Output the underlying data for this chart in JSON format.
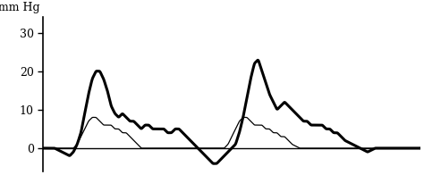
{
  "ylabel": "mm Hg",
  "yticks": [
    0,
    10,
    20,
    30
  ],
  "ylim": [
    -6,
    34
  ],
  "xlim": [
    0,
    100
  ],
  "bg_color": "#ffffff",
  "line_color": "#000000",
  "figsize": [
    4.74,
    1.96
  ],
  "dpi": 100,
  "thick_x": [
    0,
    3,
    5,
    7,
    8,
    9,
    10,
    11,
    12,
    13,
    14,
    15,
    16,
    17,
    18,
    19,
    20,
    21,
    22,
    23,
    24,
    25,
    26,
    27,
    28,
    29,
    30,
    31,
    32,
    33,
    34,
    35,
    36,
    37,
    38,
    39,
    40,
    41,
    42,
    43,
    44,
    45,
    46,
    47,
    48,
    49,
    50,
    51,
    52,
    53,
    54,
    55,
    56,
    57,
    58,
    59,
    60,
    61,
    62,
    63,
    64,
    65,
    66,
    67,
    68,
    69,
    70,
    71,
    72,
    73,
    74,
    75,
    76,
    77,
    78,
    79,
    80,
    82,
    84,
    86,
    88,
    90,
    95,
    100
  ],
  "thick_y": [
    0,
    0,
    -1,
    -2,
    -1,
    1,
    4,
    9,
    14,
    18,
    20,
    20,
    18,
    15,
    11,
    9,
    8,
    9,
    8,
    7,
    7,
    6,
    5,
    6,
    6,
    5,
    5,
    5,
    5,
    4,
    4,
    5,
    5,
    4,
    3,
    2,
    1,
    0,
    -1,
    -2,
    -3,
    -4,
    -4,
    -3,
    -2,
    -1,
    0,
    1,
    4,
    8,
    13,
    18,
    22,
    23,
    20,
    17,
    14,
    12,
    10,
    11,
    12,
    11,
    10,
    9,
    8,
    7,
    7,
    6,
    6,
    6,
    6,
    5,
    5,
    4,
    4,
    3,
    2,
    1,
    0,
    -1,
    0,
    0,
    0,
    0
  ],
  "thin_x": [
    0,
    4,
    7,
    8,
    9,
    10,
    11,
    12,
    13,
    14,
    15,
    16,
    17,
    18,
    19,
    20,
    21,
    22,
    23,
    24,
    25,
    26,
    28,
    30,
    33,
    36,
    40,
    44,
    48,
    49,
    50,
    51,
    52,
    53,
    54,
    55,
    56,
    57,
    58,
    59,
    60,
    61,
    62,
    63,
    64,
    65,
    66,
    68,
    70,
    73,
    76,
    80,
    85,
    90,
    95,
    100
  ],
  "thin_y": [
    0,
    0,
    0,
    0,
    1,
    3,
    5,
    7,
    8,
    8,
    7,
    6,
    6,
    6,
    5,
    5,
    4,
    4,
    3,
    2,
    1,
    0,
    0,
    0,
    0,
    0,
    0,
    0,
    0,
    1,
    3,
    5,
    7,
    8,
    8,
    7,
    6,
    6,
    6,
    5,
    5,
    4,
    4,
    3,
    3,
    2,
    1,
    0,
    0,
    0,
    0,
    0,
    0,
    0,
    0,
    0
  ]
}
